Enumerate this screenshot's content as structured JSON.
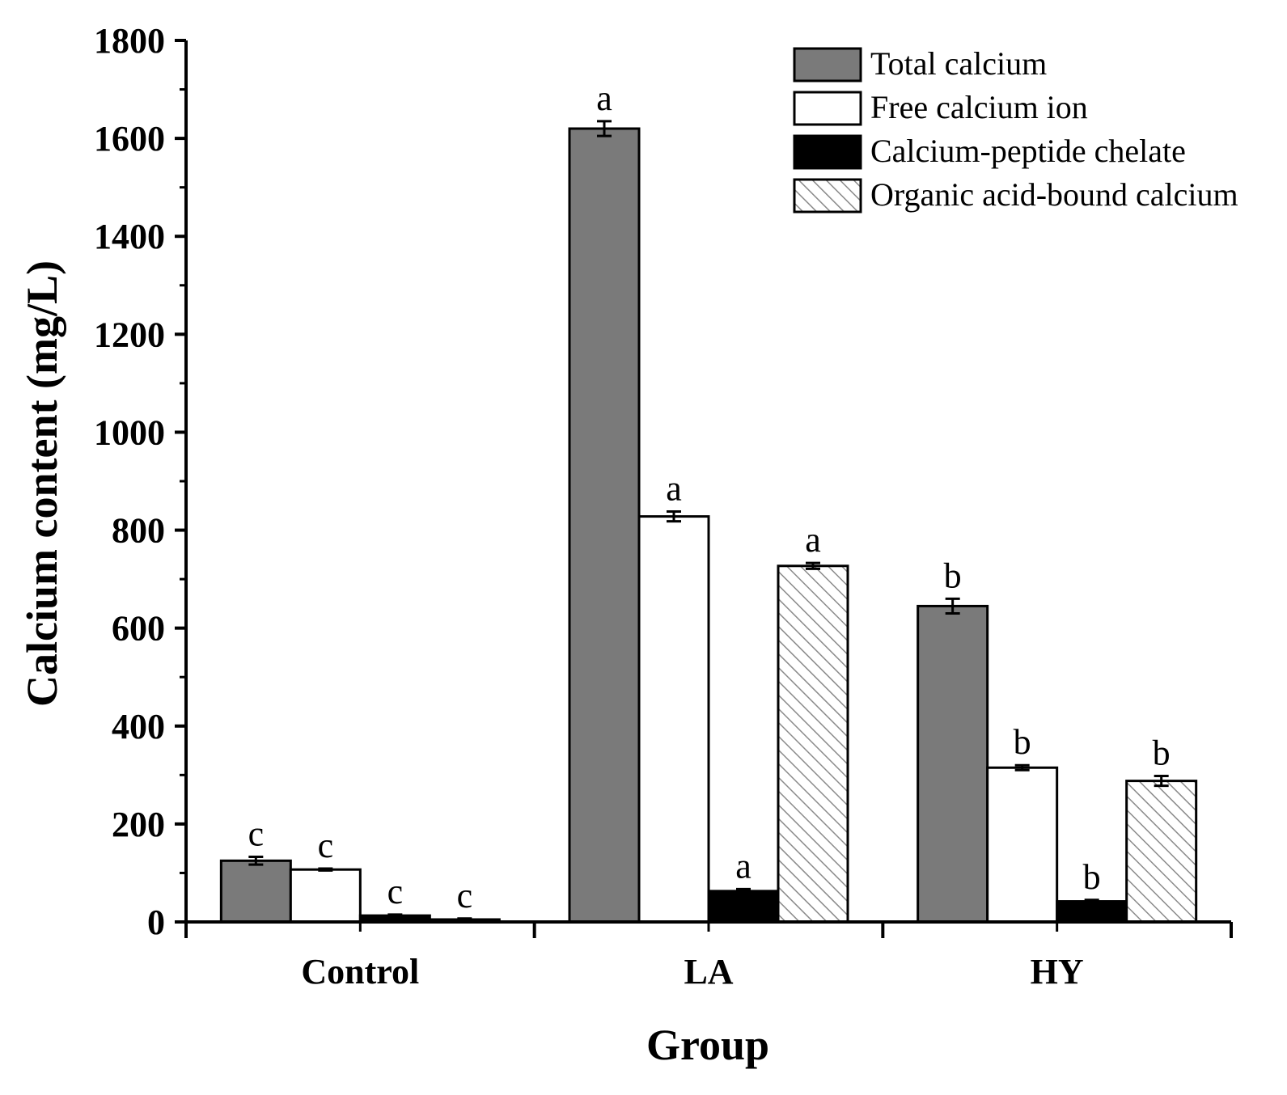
{
  "chart_data": {
    "type": "bar",
    "title": "",
    "xlabel": "Group",
    "ylabel": "Calcium content (mg/L)",
    "ylim": [
      0,
      1800
    ],
    "yticks": [
      0,
      200,
      400,
      600,
      800,
      1000,
      1200,
      1400,
      1600,
      1800
    ],
    "ytick_labels": [
      "0",
      "200",
      "400",
      "600",
      "800",
      "1000",
      "1200",
      "1400",
      "1600",
      "1800"
    ],
    "categories": [
      "Control",
      "LA",
      "HY"
    ],
    "legend_position": "top-right",
    "series": [
      {
        "name": "Total calcium",
        "style": "gray",
        "color": "#7a7a7a",
        "values": [
          125,
          1620,
          645
        ],
        "errors": [
          8,
          15,
          15
        ],
        "labels": [
          "c",
          "a",
          "b"
        ]
      },
      {
        "name": "Free calcium ion",
        "style": "white",
        "color": "#ffffff",
        "values": [
          107,
          828,
          315
        ],
        "errors": [
          2,
          10,
          5
        ],
        "labels": [
          "c",
          "a",
          "b"
        ]
      },
      {
        "name": "Calcium-peptide chelate",
        "style": "black",
        "color": "#000000",
        "values": [
          13,
          63,
          42
        ],
        "errors": [
          2,
          4,
          3
        ],
        "labels": [
          "c",
          "a",
          "b"
        ]
      },
      {
        "name": "Organic acid-bound calcium",
        "style": "hatched",
        "color": "#ffffff",
        "values": [
          5,
          727,
          288
        ],
        "errors": [
          2,
          6,
          10
        ],
        "labels": [
          "c",
          "a",
          "b"
        ]
      }
    ]
  }
}
